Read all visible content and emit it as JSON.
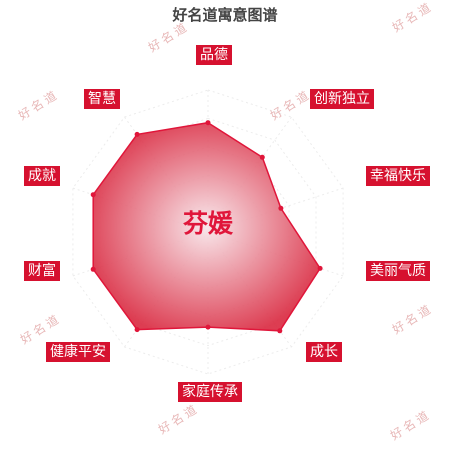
{
  "title": "好名道寓意图谱",
  "center_name": "芬媛",
  "watermark_text": "好名道",
  "colors": {
    "label_bg": "#d6112f",
    "fill_outer": "#d9283f",
    "fill_inner": "#f8e6ea",
    "stroke": "#e0163a",
    "grid": "#ececec"
  },
  "chart_data": {
    "type": "radar",
    "title": "好名道寓意图谱",
    "categories": [
      "品德",
      "创新独立",
      "幸福快乐",
      "美丽气质",
      "成长",
      "家庭传承",
      "健康平安",
      "财富",
      "成就",
      "智慧"
    ],
    "values": [
      77,
      65,
      54,
      83,
      86,
      67,
      85,
      85,
      85,
      85
    ],
    "range": [
      0,
      100
    ],
    "grid": true,
    "ring_count": 5
  }
}
